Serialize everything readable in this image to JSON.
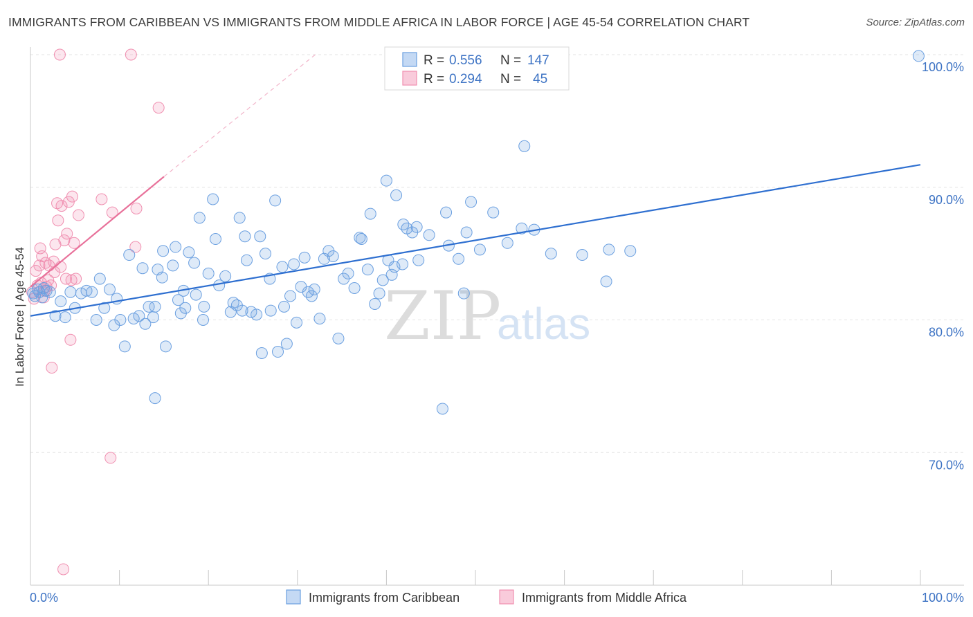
{
  "title": "IMMIGRANTS FROM CARIBBEAN VS IMMIGRANTS FROM MIDDLE AFRICA IN LABOR FORCE | AGE 45-54 CORRELATION CHART",
  "source": "Source: ZipAtlas.com",
  "colors": {
    "blue": "#6a9fe0",
    "blue_line": "#2e6fd0",
    "pink": "#f08fb0",
    "pink_line": "#e8719a",
    "tick": "#3d73c4"
  },
  "chart_data": {
    "type": "scatter",
    "ylabel": "In Labor Force | Age 45-54",
    "xlim": [
      0,
      100
    ],
    "ylim": [
      60,
      100
    ],
    "x_tick_labels": [
      "0.0%",
      "100.0%"
    ],
    "y_ticks": [
      70,
      80,
      90,
      100
    ],
    "y_tick_labels": [
      "70.0%",
      "80.0%",
      "90.0%",
      "100.0%"
    ],
    "legend": {
      "rows": [
        {
          "r_label": "R =",
          "r_value": "0.556",
          "n_label": "N =",
          "n_value": "147"
        },
        {
          "r_label": "R =",
          "r_value": "0.294",
          "n_label": "N =",
          "n_value": "45"
        }
      ]
    },
    "series": [
      {
        "name": "Immigrants from Caribbean",
        "color": "#6a9fe0",
        "trend": {
          "x": [
            0,
            100
          ],
          "y": [
            80.3,
            91.7
          ]
        },
        "points": [
          [
            0.3,
            82
          ],
          [
            0.5,
            81.8
          ],
          [
            0.8,
            82.3
          ],
          [
            1,
            82.1
          ],
          [
            1.3,
            81.7
          ],
          [
            1.5,
            82.4
          ],
          [
            1.8,
            82.2
          ],
          [
            2.2,
            82.1
          ],
          [
            2.8,
            80.3
          ],
          [
            3.4,
            81.4
          ],
          [
            3.9,
            80.2
          ],
          [
            4.5,
            82.1
          ],
          [
            5,
            80.9
          ],
          [
            5.7,
            82
          ],
          [
            6.3,
            82.2
          ],
          [
            6.9,
            82.1
          ],
          [
            7.4,
            80
          ],
          [
            7.8,
            83.1
          ],
          [
            8.3,
            80.9
          ],
          [
            8.9,
            82.3
          ],
          [
            9.4,
            79.6
          ],
          [
            9.7,
            81.6
          ],
          [
            10.1,
            80
          ],
          [
            10.6,
            78
          ],
          [
            11.1,
            84.9
          ],
          [
            11.6,
            80.1
          ],
          [
            12.2,
            80.3
          ],
          [
            12.6,
            83.9
          ],
          [
            12.9,
            79.7
          ],
          [
            13.3,
            81
          ],
          [
            13.8,
            80.2
          ],
          [
            14,
            81
          ],
          [
            14.3,
            83.8
          ],
          [
            14.8,
            83.2
          ],
          [
            14.9,
            85.2
          ],
          [
            15.2,
            78
          ],
          [
            16,
            84.1
          ],
          [
            16.3,
            85.5
          ],
          [
            16.6,
            81.5
          ],
          [
            16.9,
            80.5
          ],
          [
            17.2,
            82.2
          ],
          [
            17.4,
            80.9
          ],
          [
            17.8,
            85.1
          ],
          [
            18.4,
            84.3
          ],
          [
            18.6,
            81.9
          ],
          [
            19,
            87.7
          ],
          [
            19.4,
            80
          ],
          [
            19.5,
            81
          ],
          [
            20,
            83.5
          ],
          [
            20.5,
            89.1
          ],
          [
            20.8,
            86.1
          ],
          [
            21.2,
            82.6
          ],
          [
            21.9,
            83.3
          ],
          [
            22.5,
            80.6
          ],
          [
            22.8,
            81.3
          ],
          [
            23.2,
            81.1
          ],
          [
            23.5,
            87.7
          ],
          [
            23.8,
            80.7
          ],
          [
            24.1,
            86.3
          ],
          [
            24.3,
            84.5
          ],
          [
            24.8,
            80.6
          ],
          [
            25.4,
            80.4
          ],
          [
            25.8,
            86.3
          ],
          [
            26,
            77.5
          ],
          [
            26.4,
            85
          ],
          [
            26.9,
            83.1
          ],
          [
            27,
            80.7
          ],
          [
            27.5,
            89
          ],
          [
            27.8,
            77.6
          ],
          [
            28.3,
            84
          ],
          [
            28.5,
            81
          ],
          [
            28.8,
            78.2
          ],
          [
            29.2,
            81.8
          ],
          [
            29.6,
            84.2
          ],
          [
            29.9,
            79.8
          ],
          [
            30.4,
            82.5
          ],
          [
            30.8,
            84.7
          ],
          [
            31.2,
            82.1
          ],
          [
            31.6,
            81.8
          ],
          [
            31.9,
            82.3
          ],
          [
            32.5,
            80.1
          ],
          [
            33,
            84.6
          ],
          [
            33.5,
            85.2
          ],
          [
            34,
            84.8
          ],
          [
            34.6,
            78.6
          ],
          [
            35.2,
            83.1
          ],
          [
            35.7,
            83.5
          ],
          [
            36.4,
            82.4
          ],
          [
            37,
            86.2
          ],
          [
            37.2,
            86.1
          ],
          [
            37.9,
            83.8
          ],
          [
            38.2,
            88
          ],
          [
            38.7,
            81.2
          ],
          [
            39.2,
            82
          ],
          [
            39.6,
            83
          ],
          [
            40,
            90.5
          ],
          [
            40.2,
            84.5
          ],
          [
            40.6,
            83.4
          ],
          [
            40.9,
            84
          ],
          [
            41.1,
            89.4
          ],
          [
            41.8,
            84.2
          ],
          [
            41.9,
            87.2
          ],
          [
            42.3,
            86.9
          ],
          [
            42.9,
            86.6
          ],
          [
            43.4,
            87
          ],
          [
            43.6,
            84.5
          ],
          [
            44.8,
            86.4
          ],
          [
            46.3,
            73.3
          ],
          [
            46.7,
            88.1
          ],
          [
            47,
            85.6
          ],
          [
            48.1,
            84.6
          ],
          [
            48.7,
            82
          ],
          [
            49,
            86.6
          ],
          [
            49.5,
            88.9
          ],
          [
            50.5,
            85.3
          ],
          [
            52,
            88.1
          ],
          [
            53.6,
            85.8
          ],
          [
            55.5,
            93.1
          ],
          [
            55.2,
            86.9
          ],
          [
            56.6,
            86.8
          ],
          [
            58.5,
            85
          ],
          [
            62,
            84.9
          ],
          [
            64.7,
            82.9
          ],
          [
            65,
            85.3
          ],
          [
            67.4,
            85.2
          ],
          [
            99.8,
            99.9
          ],
          [
            14,
            74.1
          ]
        ]
      },
      {
        "name": "Immigrants from Middle Africa",
        "color": "#f08fb0",
        "trend": {
          "x": [
            0,
            15
          ],
          "y": [
            82.5,
            90.8
          ]
        },
        "trend_ext": {
          "x": [
            15,
            32
          ],
          "y": [
            90.8,
            100
          ]
        },
        "points": [
          [
            0.2,
            82.1
          ],
          [
            0.4,
            81.6
          ],
          [
            0.6,
            83.7
          ],
          [
            0.8,
            82.6
          ],
          [
            1,
            84.1
          ],
          [
            1.1,
            85.4
          ],
          [
            1.2,
            82.8
          ],
          [
            1.3,
            84.8
          ],
          [
            1.5,
            81.7
          ],
          [
            1.6,
            82.2
          ],
          [
            1.7,
            84.3
          ],
          [
            1.8,
            82.5
          ],
          [
            2,
            83
          ],
          [
            2.1,
            84.1
          ],
          [
            2.3,
            82.6
          ],
          [
            2.4,
            76.4
          ],
          [
            2.6,
            84.4
          ],
          [
            2.7,
            83.6
          ],
          [
            2.8,
            85.7
          ],
          [
            3,
            88.8
          ],
          [
            3.1,
            87.5
          ],
          [
            3.3,
            100
          ],
          [
            3.4,
            84
          ],
          [
            3.5,
            88.6
          ],
          [
            3.7,
            61.2
          ],
          [
            3.8,
            86
          ],
          [
            4,
            83.1
          ],
          [
            4.1,
            86.5
          ],
          [
            4.3,
            88.9
          ],
          [
            4.5,
            78.5
          ],
          [
            4.6,
            83
          ],
          [
            4.7,
            89.3
          ],
          [
            4.9,
            85.8
          ],
          [
            5.1,
            83.1
          ],
          [
            5.4,
            87.9
          ],
          [
            8,
            89.1
          ],
          [
            9,
            69.6
          ],
          [
            9.2,
            88.1
          ],
          [
            11.3,
            100
          ],
          [
            11.8,
            85.5
          ],
          [
            11.9,
            88.4
          ],
          [
            14.4,
            96
          ]
        ]
      }
    ]
  },
  "bottom_legend": [
    "Immigrants from Caribbean",
    "Immigrants from Middle Africa"
  ],
  "watermark": {
    "zip": "ZIP",
    "atlas": "atlas"
  }
}
